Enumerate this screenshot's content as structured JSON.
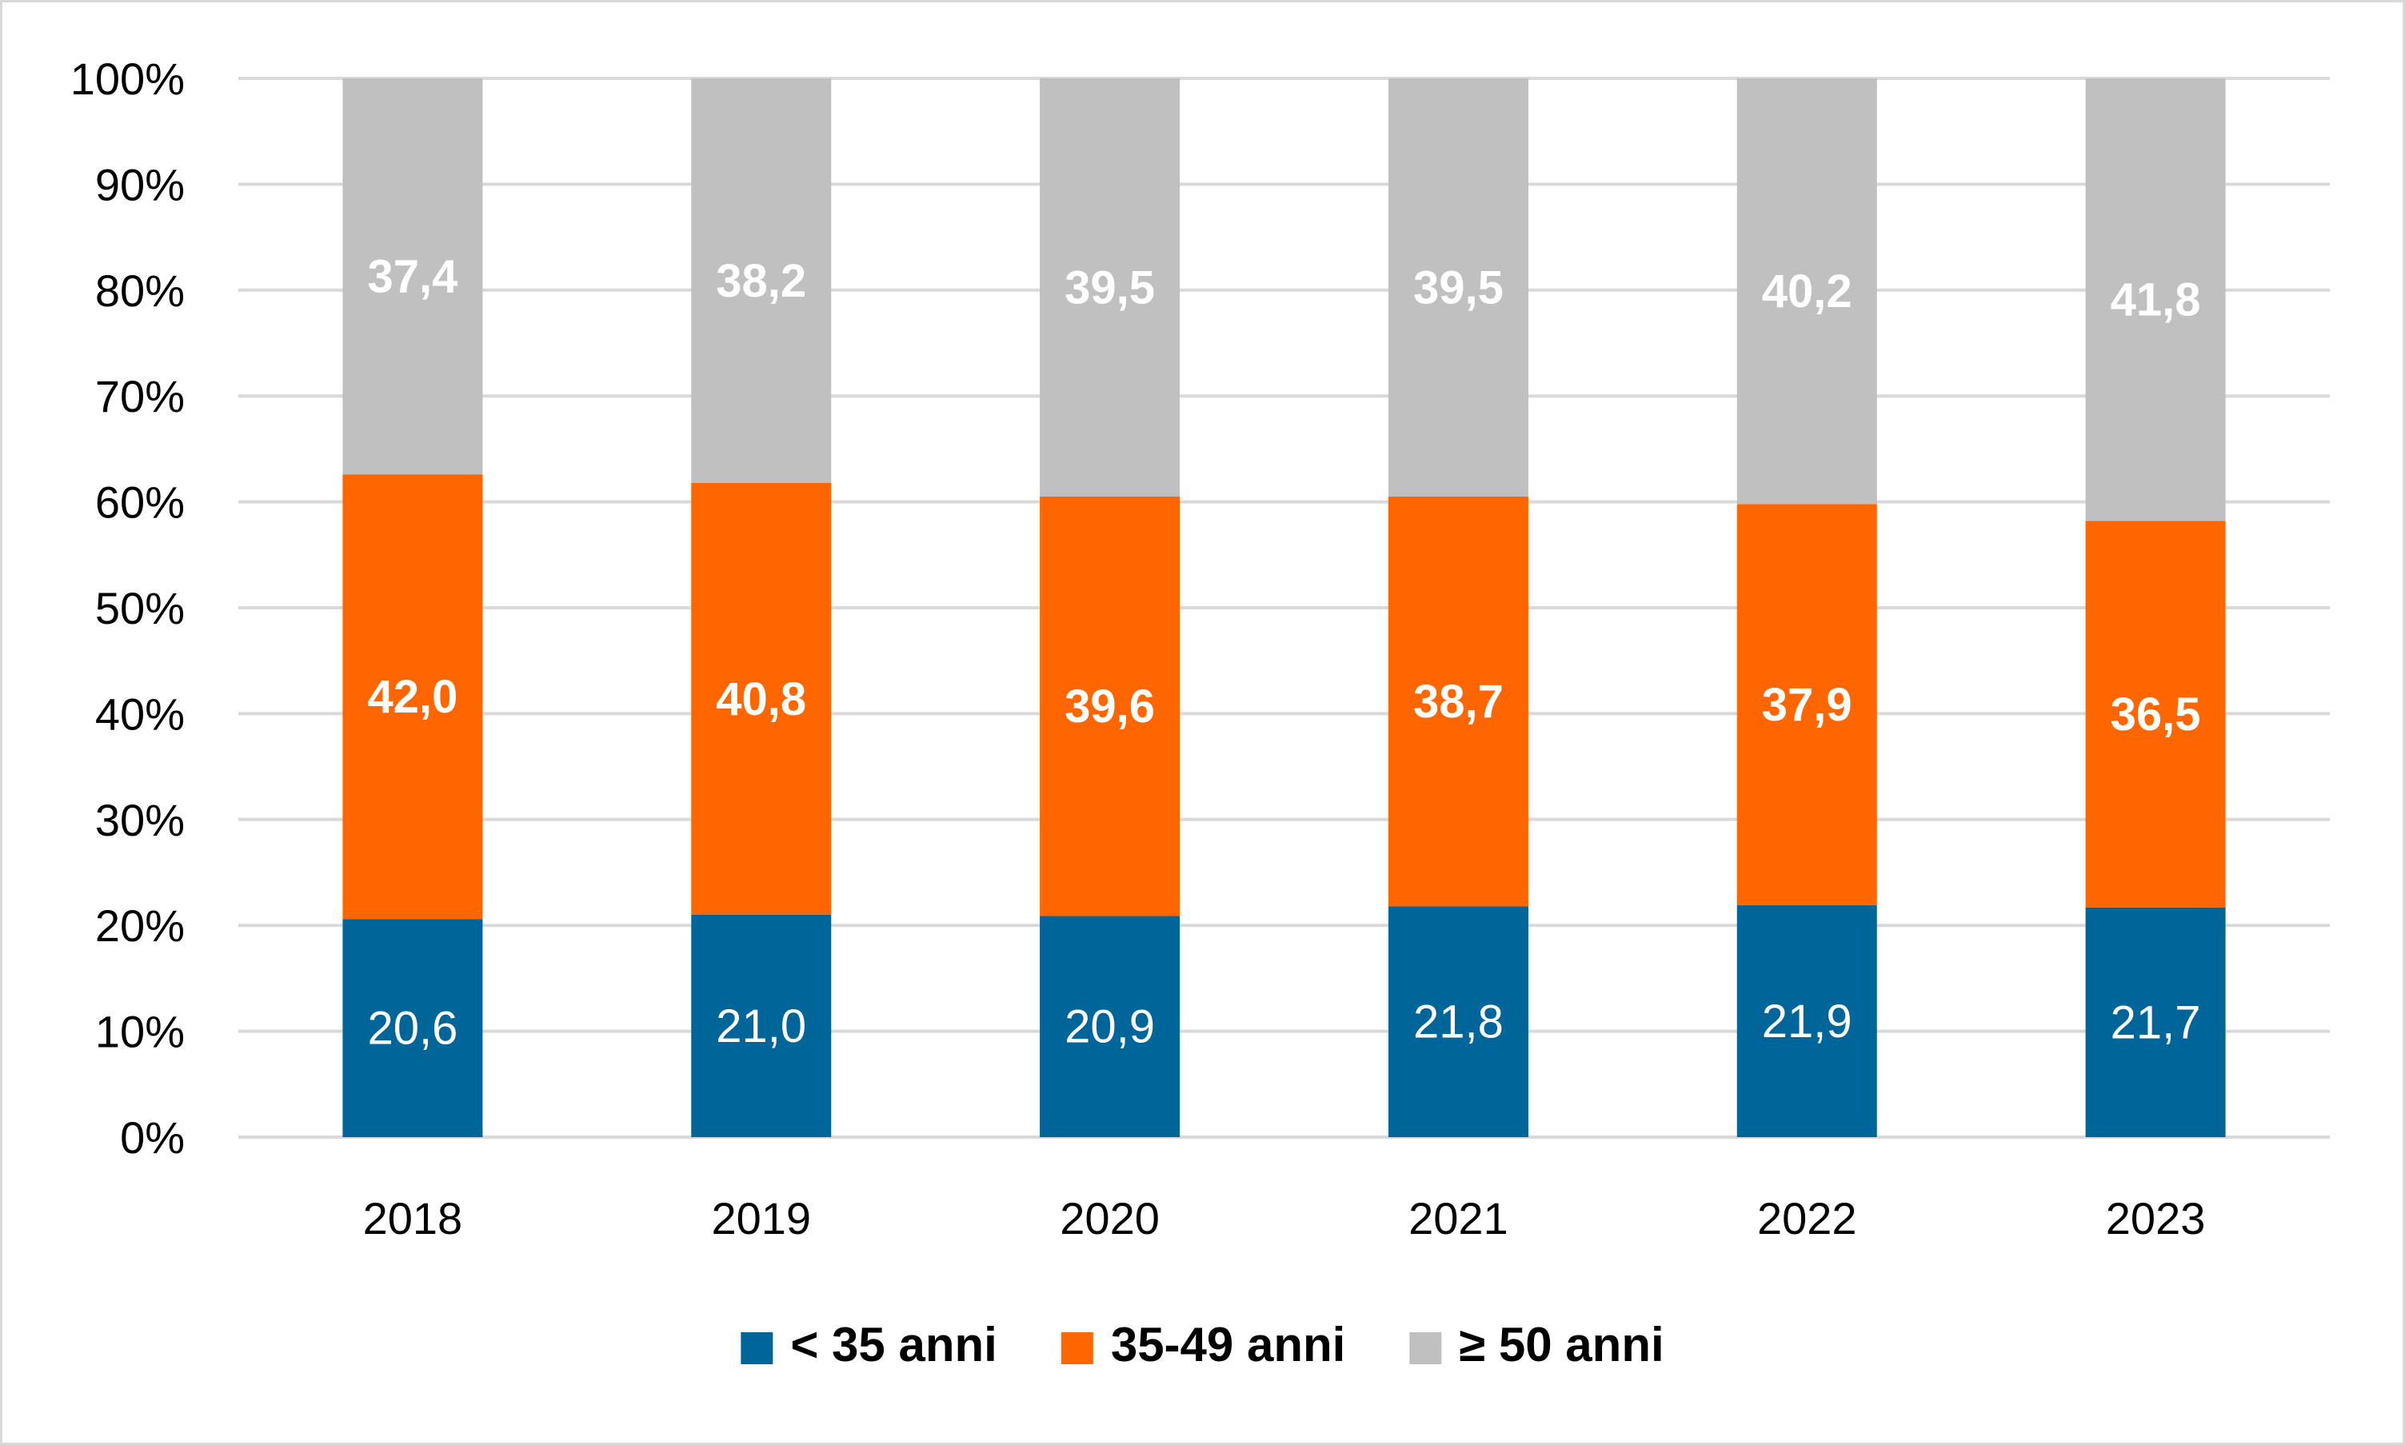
{
  "chart_data": {
    "type": "bar",
    "stacked": true,
    "normalized": true,
    "categories": [
      "2018",
      "2019",
      "2020",
      "2021",
      "2022",
      "2023"
    ],
    "series": [
      {
        "name": "< 35 anni",
        "color": "#006699",
        "label_bold": false,
        "value_labels": [
          "20,6",
          "21,0",
          "20,9",
          "21,8",
          "21,9",
          "21,7"
        ],
        "values": [
          20.6,
          21.0,
          20.9,
          21.8,
          21.9,
          21.7
        ]
      },
      {
        "name": "35-49 anni",
        "color": "#ff6600",
        "label_bold": true,
        "value_labels": [
          "42,0",
          "40,8",
          "39,6",
          "38,7",
          "37,9",
          "36,5"
        ],
        "values": [
          42.0,
          40.8,
          39.6,
          38.7,
          37.9,
          36.5
        ]
      },
      {
        "name": "≥ 50 anni",
        "color": "#c0c0c0",
        "label_bold": true,
        "value_labels": [
          "37,4",
          "38,2",
          "39,5",
          "39,5",
          "40,2",
          "41,8"
        ],
        "values": [
          37.4,
          38.2,
          39.5,
          39.5,
          40.2,
          41.8
        ]
      }
    ],
    "y_ticks": [
      "0%",
      "10%",
      "20%",
      "30%",
      "40%",
      "50%",
      "60%",
      "70%",
      "80%",
      "90%",
      "100%"
    ],
    "ylim": [
      0,
      100
    ],
    "grid": true,
    "legend_position": "bottom",
    "gridline_color": "#d9d9d9"
  }
}
